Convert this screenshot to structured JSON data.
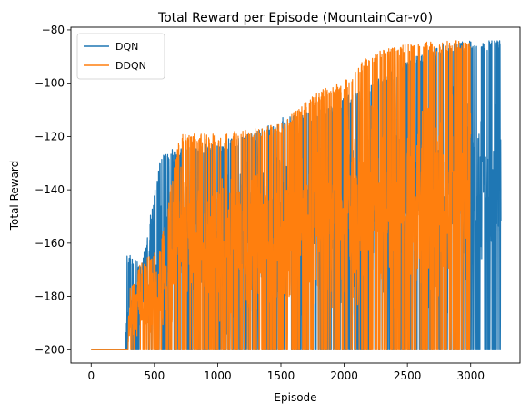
{
  "chart_data": {
    "type": "line",
    "title": "Total Reward per Episode (MountainCar-v0)",
    "xlabel": "Episode",
    "ylabel": "Total Reward",
    "xlim": [
      -160,
      3390
    ],
    "ylim": [
      -205,
      -79
    ],
    "xticks": [
      0,
      500,
      1000,
      1500,
      2000,
      2500,
      3000
    ],
    "yticks": [
      -200,
      -180,
      -160,
      -140,
      -120,
      -100,
      -80
    ],
    "grid": false,
    "legend": "top-left",
    "series": [
      {
        "name": "DQN",
        "color": "#1f77b4",
        "episodes": 3240,
        "floor": -200,
        "profile": [
          {
            "x": 0,
            "low": -200,
            "high": -200
          },
          {
            "x": 270,
            "low": -200,
            "high": -200
          },
          {
            "x": 280,
            "low": -200,
            "high": -163
          },
          {
            "x": 400,
            "low": -200,
            "high": -168
          },
          {
            "x": 560,
            "low": -200,
            "high": -125
          },
          {
            "x": 800,
            "low": -200,
            "high": -124
          },
          {
            "x": 1000,
            "low": -200,
            "high": -122
          },
          {
            "x": 1300,
            "low": -200,
            "high": -118
          },
          {
            "x": 1500,
            "low": -200,
            "high": -113
          },
          {
            "x": 1800,
            "low": -200,
            "high": -110
          },
          {
            "x": 2100,
            "low": -200,
            "high": -103
          },
          {
            "x": 2400,
            "low": -200,
            "high": -95
          },
          {
            "x": 2700,
            "low": -200,
            "high": -86
          },
          {
            "x": 3000,
            "low": -200,
            "high": -84
          },
          {
            "x": 3240,
            "low": -195,
            "high": -84
          }
        ]
      },
      {
        "name": "DDQN",
        "color": "#ff7f0e",
        "episodes": 3000,
        "floor": -200,
        "profile": [
          {
            "x": 0,
            "low": -200,
            "high": -200
          },
          {
            "x": 290,
            "low": -200,
            "high": -200
          },
          {
            "x": 300,
            "low": -200,
            "high": -178
          },
          {
            "x": 350,
            "low": -200,
            "high": -170
          },
          {
            "x": 550,
            "low": -200,
            "high": -160
          },
          {
            "x": 700,
            "low": -200,
            "high": -119
          },
          {
            "x": 1000,
            "low": -200,
            "high": -119
          },
          {
            "x": 1300,
            "low": -200,
            "high": -117
          },
          {
            "x": 1500,
            "low": -200,
            "high": -115
          },
          {
            "x": 1800,
            "low": -200,
            "high": -103
          },
          {
            "x": 2000,
            "low": -200,
            "high": -99
          },
          {
            "x": 2200,
            "low": -200,
            "high": -89
          },
          {
            "x": 2500,
            "low": -200,
            "high": -85
          },
          {
            "x": 2800,
            "low": -200,
            "high": -84
          },
          {
            "x": 3000,
            "low": -185,
            "high": -84
          }
        ]
      }
    ]
  }
}
